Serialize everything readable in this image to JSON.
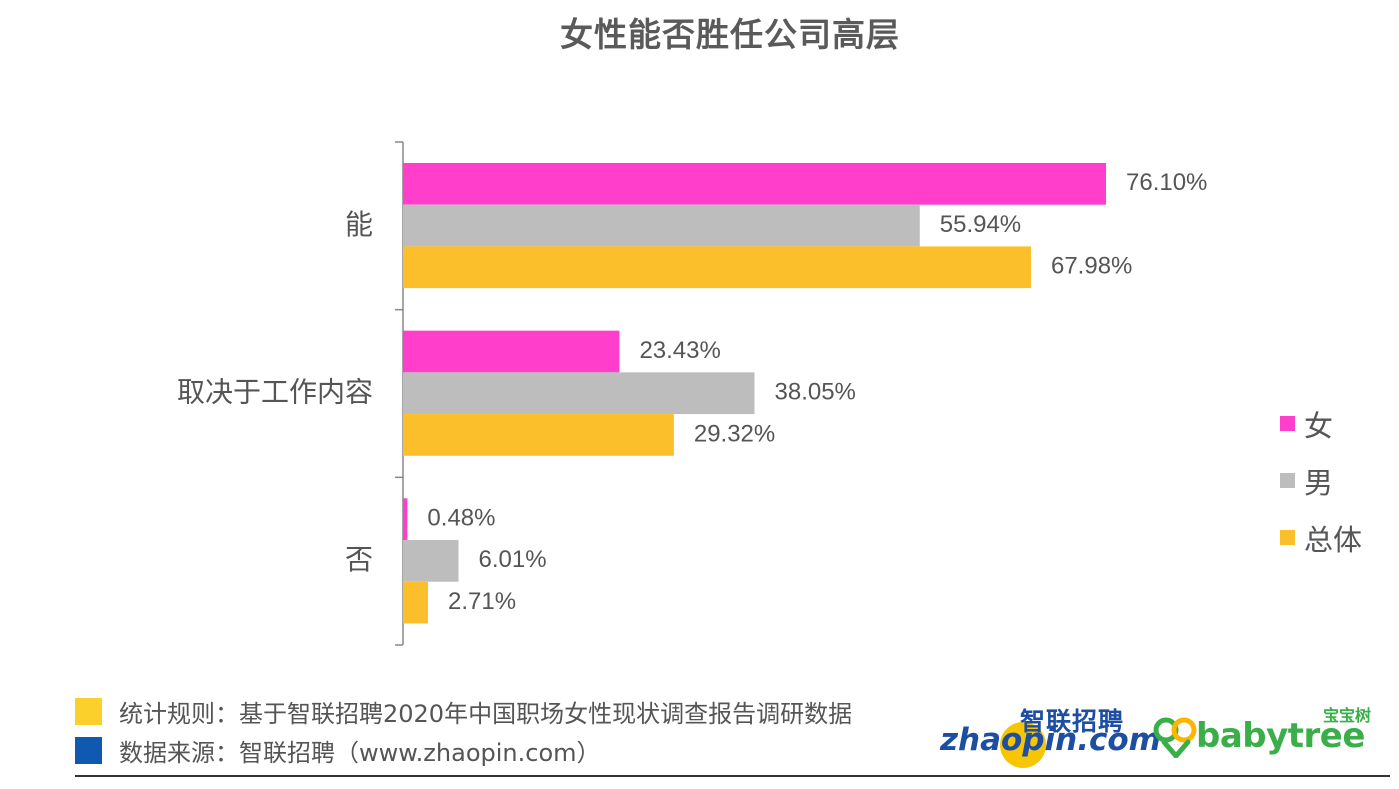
{
  "title": "女性能否胜任公司高层",
  "chart_data": {
    "type": "bar",
    "orientation": "horizontal",
    "title": "女性能否胜任公司高层",
    "categories": [
      "能",
      "取决于工作内容",
      "否"
    ],
    "series": [
      {
        "name": "女",
        "color": "#ff3fcc",
        "values": [
          76.1,
          23.43,
          0.48
        ]
      },
      {
        "name": "男",
        "color": "#bdbdbd",
        "values": [
          55.94,
          38.05,
          6.01
        ]
      },
      {
        "name": "总体",
        "color": "#fbbf2c",
        "values": [
          67.98,
          29.32,
          2.71
        ]
      }
    ],
    "value_labels": [
      [
        "76.10%",
        "23.43%",
        "0.48%"
      ],
      [
        "55.94%",
        "38.05%",
        "6.01%"
      ],
      [
        "67.98%",
        "29.32%",
        "2.71%"
      ]
    ],
    "xlim": [
      0,
      100
    ],
    "unit": "%",
    "legend_position": "right",
    "grid": false
  },
  "legend": [
    {
      "label": "女",
      "color": "#ff3fcc"
    },
    {
      "label": "男",
      "color": "#bdbdbd"
    },
    {
      "label": "总体",
      "color": "#fbbf2c"
    }
  ],
  "footnotes": [
    {
      "text": "统计规则：基于智联招聘2020年中国职场女性现状调查报告调研数据",
      "color": "#fcd02b"
    },
    {
      "text": "数据来源：智联招聘（www.zhaopin.com）",
      "color": "#0f5ab0"
    }
  ],
  "logos": {
    "zhaopin_cn": "智联招聘",
    "zhaopin_en": "zhaopin.com",
    "babytree_cn": "宝宝树",
    "babytree_en": "babytree"
  }
}
